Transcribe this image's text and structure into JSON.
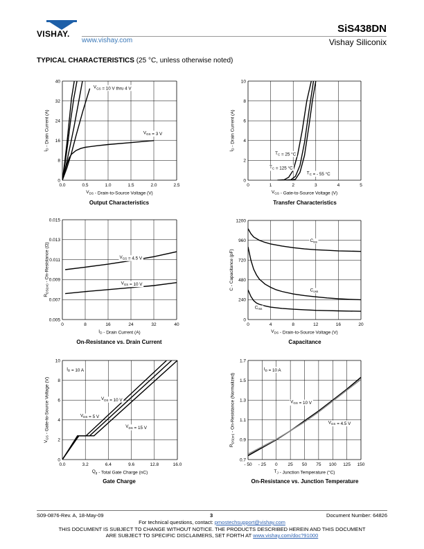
{
  "header": {
    "logo_text": "VISHAY.",
    "website": "www.vishay.com",
    "part_number": "SiS438DN",
    "company": "Vishay Siliconix"
  },
  "section": {
    "title_bold": "TYPICAL CHARACTERISTICS",
    "title_rest": " (25 °C, unless otherwise noted)"
  },
  "charts": [
    {
      "id": "output",
      "type": "line",
      "caption": "Output Characteristics",
      "xlabel": "V_DS - Drain-to-Source Voltage (V)",
      "ylabel": "I_D - Drain Current (A)",
      "xlim": [
        0,
        2.5
      ],
      "ylim": [
        0,
        40
      ],
      "xticks": [
        "0.0",
        "0.5",
        "1.0",
        "1.5",
        "2.0",
        "2.5"
      ],
      "yticks": [
        "0",
        "8",
        "16",
        "24",
        "32",
        "40"
      ],
      "annotations": [
        {
          "text": "V_GS = 10 V thru 4 V",
          "x": 0.68,
          "y": 37
        },
        {
          "text": "V_GS = 3 V",
          "x": 1.77,
          "y": 18.6
        }
      ],
      "series": [
        {
          "x": [
            0,
            0.05,
            0.1,
            0.15,
            0.2,
            0.26
          ],
          "y": [
            0,
            7,
            15,
            24,
            33,
            40
          ]
        },
        {
          "x": [
            0,
            0.06,
            0.12,
            0.18,
            0.25,
            0.32
          ],
          "y": [
            0,
            7,
            15,
            24,
            33,
            40
          ]
        },
        {
          "x": [
            0,
            0.08,
            0.16,
            0.25,
            0.35,
            0.44
          ],
          "y": [
            0,
            6,
            13,
            21,
            31,
            40
          ]
        },
        {
          "x": [
            0,
            0.1,
            0.2,
            0.3,
            0.45,
            0.6
          ],
          "y": [
            0,
            5,
            11,
            18,
            28,
            37
          ]
        },
        {
          "x": [
            0,
            0.05,
            0.1,
            0.15,
            0.2,
            0.3,
            0.4,
            0.5,
            0.75,
            1.0,
            1.5,
            2.0
          ],
          "y": [
            0,
            3.5,
            6.5,
            9,
            10.5,
            12,
            12.8,
            13.3,
            13.9,
            14.4,
            15.2,
            16
          ]
        }
      ]
    },
    {
      "id": "transfer",
      "type": "line",
      "caption": "Transfer Characteristics",
      "xlabel": "V_GS - Gate-to-Source Voltage (V)",
      "ylabel": "I_D - Drain Current (A)",
      "xlim": [
        0,
        5
      ],
      "ylim": [
        0,
        10
      ],
      "xticks": [
        "0",
        "1",
        "2",
        "3",
        "4",
        "5"
      ],
      "yticks": [
        "0",
        "2",
        "4",
        "6",
        "8",
        "10"
      ],
      "annotations": [
        {
          "text": "T_C = 25 °C",
          "x": 1.2,
          "y": 2.6
        },
        {
          "text": "T_C = 125 °C",
          "x": 0.95,
          "y": 1.2
        },
        {
          "text": "T_C = - 55 °C",
          "x": 2.6,
          "y": 0.6
        }
      ],
      "series": [
        {
          "x": [
            1.3,
            1.6,
            1.8,
            2.0,
            2.2,
            2.4,
            2.6,
            2.8
          ],
          "y": [
            0,
            0.05,
            0.3,
            1.0,
            2.6,
            5.0,
            8.0,
            10
          ]
        },
        {
          "x": [
            1.6,
            1.9,
            2.1,
            2.3,
            2.5,
            2.7,
            2.9
          ],
          "y": [
            0,
            0.05,
            0.4,
            1.5,
            3.8,
            7.0,
            10
          ]
        },
        {
          "x": [
            1.9,
            2.1,
            2.3,
            2.5,
            2.7,
            2.85,
            3.0
          ],
          "y": [
            0,
            0.1,
            0.8,
            2.5,
            5.5,
            8.0,
            10
          ]
        }
      ]
    },
    {
      "id": "onres",
      "type": "line",
      "caption": "On-Resistance vs. Drain Current",
      "xlabel": "I_D - Drain Current (A)",
      "ylabel": "R_DS(on) - On-Resistance (Ω)",
      "xlim": [
        0,
        40
      ],
      "ylim": [
        0.005,
        0.015
      ],
      "xticks": [
        "0",
        "8",
        "16",
        "24",
        "32",
        "40"
      ],
      "yticks": [
        "0.005",
        "0.007",
        "0.009",
        "0.011",
        "0.013",
        "0.015"
      ],
      "annotations": [
        {
          "text": "V_GS = 4.5 V",
          "x": 20,
          "y": 0.0111
        },
        {
          "text": "V_GS = 10 V",
          "x": 20.5,
          "y": 0.0085
        }
      ],
      "series": [
        {
          "x": [
            1,
            8,
            16,
            24,
            32,
            40
          ],
          "y": [
            0.01,
            0.01025,
            0.01055,
            0.0109,
            0.0113,
            0.0118
          ]
        },
        {
          "x": [
            1,
            8,
            16,
            24,
            32,
            40
          ],
          "y": [
            0.0076,
            0.0078,
            0.008,
            0.0082,
            0.0084,
            0.0087
          ]
        }
      ]
    },
    {
      "id": "cap",
      "type": "line",
      "caption": "Capacitance",
      "xlabel": "V_DS - Drain-to-Source Voltage (V)",
      "ylabel": "C - Capacitance (pF)",
      "xlim": [
        0,
        20
      ],
      "ylim": [
        0,
        1200
      ],
      "xticks": [
        "0",
        "4",
        "8",
        "12",
        "16",
        "20"
      ],
      "yticks": [
        "0",
        "240",
        "480",
        "720",
        "960",
        "1200"
      ],
      "annotations": [
        {
          "text": "C_iss",
          "x": 11,
          "y": 940
        },
        {
          "text": "C_oss",
          "x": 11,
          "y": 340
        },
        {
          "text": "C_rss",
          "x": 1.2,
          "y": 130
        }
      ],
      "series": [
        {
          "x": [
            0,
            0.5,
            1,
            2,
            3,
            4,
            6,
            8,
            10,
            12,
            14,
            16,
            18,
            20
          ],
          "y": [
            1100,
            1040,
            1000,
            960,
            935,
            915,
            890,
            870,
            855,
            845,
            838,
            832,
            828,
            825
          ]
        },
        {
          "x": [
            0,
            0.5,
            1,
            1.5,
            2,
            3,
            4,
            5,
            6,
            8,
            10,
            12,
            14,
            16,
            18,
            20
          ],
          "y": [
            880,
            720,
            610,
            540,
            490,
            430,
            390,
            360,
            340,
            310,
            290,
            275,
            262,
            252,
            245,
            240
          ]
        },
        {
          "x": [
            0,
            0.5,
            1,
            1.5,
            2,
            3,
            4,
            6,
            8,
            10,
            12,
            14,
            16,
            18,
            20
          ],
          "y": [
            360,
            280,
            230,
            200,
            185,
            165,
            150,
            135,
            125,
            118,
            112,
            108,
            105,
            102,
            100
          ]
        }
      ]
    },
    {
      "id": "gate",
      "type": "line",
      "caption": "Gate Charge",
      "xlabel": "Q_g - Total Gate Charge (nC)",
      "ylabel": "V_GS - Gate-to-Source Voltage (V)",
      "xlim": [
        0,
        16
      ],
      "ylim": [
        0,
        10
      ],
      "xticks": [
        "0.0",
        "3.2",
        "6.4",
        "9.6",
        "12.8",
        "16.0"
      ],
      "yticks": [
        "0",
        "2",
        "4",
        "6",
        "8",
        "10"
      ],
      "annotations": [
        {
          "text": "I_D = 10 A",
          "x": 0.6,
          "y": 9.0
        },
        {
          "text": "V_DS = 10 V",
          "x": 5.4,
          "y": 6.0
        },
        {
          "text": "V_DS = 5 V",
          "x": 2.5,
          "y": 4.3
        },
        {
          "text": "V_DS = 15 V",
          "x": 8.8,
          "y": 3.2
        }
      ],
      "series": [
        {
          "x": [
            0,
            2.1,
            3.3,
            14.5
          ],
          "y": [
            0,
            2.4,
            2.4,
            10
          ]
        },
        {
          "x": [
            0,
            2.2,
            3.8,
            15.2
          ],
          "y": [
            0,
            2.4,
            2.4,
            10
          ]
        },
        {
          "x": [
            0,
            2.3,
            4.4,
            16.0
          ],
          "y": [
            0,
            2.4,
            2.4,
            10
          ]
        }
      ]
    },
    {
      "id": "temp",
      "type": "line",
      "caption": "On-Resistance vs. Junction Temperature",
      "xlabel": "T_J - Junction Temperature (°C)",
      "ylabel": "R_DS(on) - On-Resistance (Normalized)",
      "xlim": [
        -50,
        150
      ],
      "ylim": [
        0.7,
        1.7
      ],
      "xticks": [
        "- 50",
        "- 25",
        "0",
        "25",
        "50",
        "75",
        "100",
        "125",
        "150"
      ],
      "yticks": [
        "0.7",
        "0.9",
        "1.1",
        "1.3",
        "1.5",
        "1.7"
      ],
      "annotations": [
        {
          "text": "I_D = 10 A",
          "x": -22,
          "y": 1.6
        },
        {
          "text": "V_GS = 10 V",
          "x": 25,
          "y": 1.27
        },
        {
          "text": "V_GS = 4.5 V",
          "x": 92,
          "y": 1.06
        }
      ],
      "series": [
        {
          "x": [
            -50,
            -25,
            0,
            25,
            50,
            75,
            100,
            125,
            150
          ],
          "y": [
            0.74,
            0.82,
            0.9,
            0.99,
            1.09,
            1.19,
            1.3,
            1.41,
            1.53
          ]
        },
        {
          "x": [
            -50,
            -25,
            0,
            25,
            50,
            75,
            100,
            125,
            150
          ],
          "y": [
            0.755,
            0.83,
            0.905,
            0.99,
            1.08,
            1.18,
            1.29,
            1.4,
            1.51
          ]
        }
      ]
    }
  ],
  "footer": {
    "doc_rev": "S09-0876-Rev. A, 18-May-09",
    "page": "3",
    "doc_number": "Document Number: 64826",
    "contact_prefix": "For technical questions, contact: ",
    "contact_email": "pmostechsupport@vishay.com",
    "notice_line1": "THIS DOCUMENT IS SUBJECT TO CHANGE WITHOUT NOTICE. THE PRODUCTS DESCRIBED HEREIN AND THIS DOCUMENT",
    "notice_line2_prefix": "ARE SUBJECT TO SPECIFIC DISCLAIMERS, SET FORTH AT ",
    "notice_url": "www.vishay.com/doc?91000"
  }
}
